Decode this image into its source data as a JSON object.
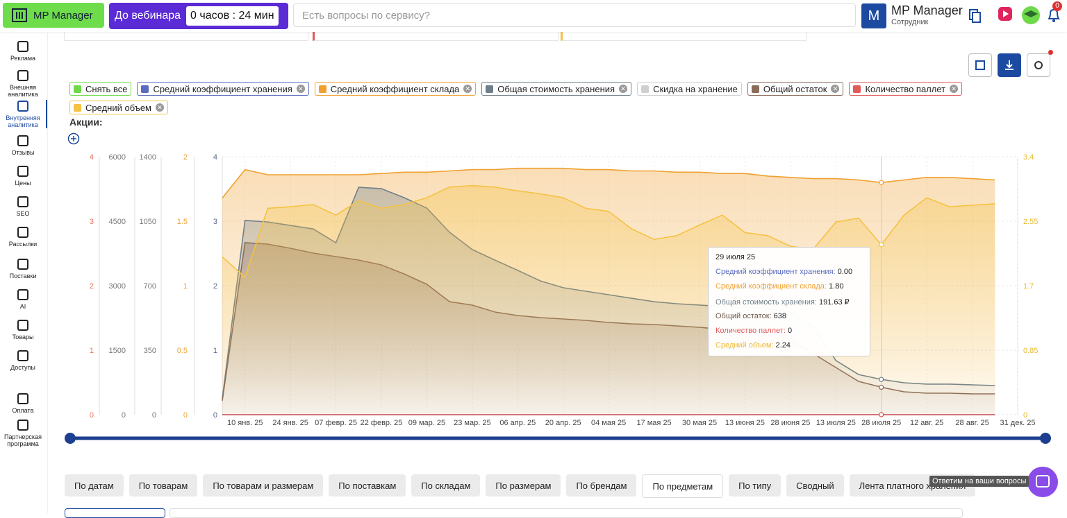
{
  "header": {
    "logo": "MP Manager",
    "webinar_label": "До вебинара",
    "webinar_timer": "0 часов : 24 мин",
    "search_placeholder": "Есть вопросы по сервису?",
    "avatar_letter": "M",
    "user_name": "MP Manager",
    "user_role": "Сотрудник",
    "notifications": "0"
  },
  "sidebar": [
    {
      "label": "Реклама",
      "active": false
    },
    {
      "label": "Внешняя аналитика",
      "active": false
    },
    {
      "label": "Внутренняя аналитика",
      "active": true
    },
    {
      "label": "Отзывы",
      "active": false
    },
    {
      "label": "Цены",
      "active": false
    },
    {
      "label": "SEO",
      "active": false
    },
    {
      "label": "Рассылки",
      "active": false
    },
    {
      "label": "Поставки",
      "active": false
    },
    {
      "label": "AI",
      "active": false
    },
    {
      "label": "Товары",
      "active": false
    },
    {
      "label": "Доступы",
      "active": false
    },
    {
      "label": "Оплата",
      "active": false
    },
    {
      "label": "Партнерская программа",
      "active": false
    }
  ],
  "legend": [
    {
      "label": "Снять все",
      "color": "#6fd94a",
      "removable": false
    },
    {
      "label": "Средний коэффициент хранения",
      "color": "#5b6bbf",
      "removable": true
    },
    {
      "label": "Средний коэффициент склада",
      "color": "#f0a030",
      "removable": true
    },
    {
      "label": "Общая стоимость хранения",
      "color": "#6e7f8a",
      "removable": true
    },
    {
      "label": "Скидка на хранение",
      "color": "#cfcfcf",
      "removable": false
    },
    {
      "label": "Общий остаток",
      "color": "#8b6b5a",
      "removable": true
    },
    {
      "label": "Количество паллет",
      "color": "#e05a5a",
      "removable": true
    },
    {
      "label": "Средний объем",
      "color": "#f5c242",
      "removable": true
    }
  ],
  "promotions_label": "Акции:",
  "chart_data": {
    "type": "line",
    "grid": true,
    "categories": [
      null,
      "10 янв. 25",
      null,
      "24 янв. 25",
      null,
      "07 февр. 25",
      null,
      "22 февр. 25",
      null,
      "09 мар. 25",
      null,
      "23 мар. 25",
      null,
      "06 апр. 25",
      null,
      "20 апр. 25",
      null,
      "04 мая 25",
      null,
      "17 мая 25",
      null,
      "30 мая 25",
      null,
      "13 июня 25",
      null,
      "28 июня 25",
      null,
      "13 июля 25",
      null,
      "28 июля 25",
      null,
      "12 авг. 25",
      null,
      "28 авг. 25",
      null,
      "31 дек. 25"
    ],
    "axes": [
      {
        "ylim": [
          0,
          4
        ],
        "yticks": [
          0,
          1,
          2,
          3,
          4
        ],
        "color": "#e8735a"
      },
      {
        "ylim": [
          0,
          6000
        ],
        "yticks": [
          0,
          1500,
          3000,
          4500,
          6000
        ],
        "color": "#777777"
      },
      {
        "ylim": [
          0,
          1400
        ],
        "yticks": [
          0,
          350,
          700,
          1050,
          1400
        ],
        "color": "#777777"
      },
      {
        "ylim": [
          0,
          2
        ],
        "yticks": [
          0,
          0.5,
          1,
          1.5,
          2
        ],
        "color": "#f0a030"
      },
      {
        "ylim": [
          0,
          4
        ],
        "yticks": [
          0,
          1,
          2,
          3,
          4
        ],
        "color": "#5a6a8a"
      },
      {
        "ylim": [
          0,
          3.4
        ],
        "yticks": [
          0,
          0.85,
          1.7,
          2.55,
          3.4
        ],
        "color": "#e8b830"
      }
    ],
    "series": [
      {
        "name": "Средний коэффициент хранения",
        "color": "#5b6bbf",
        "axis": 4,
        "values": [
          0,
          0,
          0,
          0,
          0,
          0,
          0,
          0,
          0,
          0,
          0,
          0,
          0,
          0,
          0,
          0,
          0,
          0,
          0,
          0,
          0,
          0,
          0,
          0,
          0,
          0,
          0,
          0,
          0,
          0,
          0,
          0,
          0,
          0,
          0,
          null
        ]
      },
      {
        "name": "Средний коэффициент склада",
        "color": "#f0a030",
        "axis": 3,
        "values": [
          1.68,
          1.9,
          1.86,
          1.86,
          1.86,
          1.86,
          1.86,
          1.87,
          1.88,
          1.88,
          1.89,
          1.9,
          1.9,
          1.91,
          1.91,
          1.91,
          1.9,
          1.9,
          1.89,
          1.89,
          1.88,
          1.88,
          1.87,
          1.87,
          1.85,
          1.84,
          1.83,
          1.83,
          1.82,
          1.8,
          1.82,
          1.84,
          1.84,
          1.83,
          1.82,
          null
        ]
      },
      {
        "name": "Общая стоимость хранения",
        "color": "#6e7f8a",
        "axis": 2,
        "values": [
          87,
          1054,
          1046,
          1027,
          1008,
          933,
          1234,
          1227,
          1178,
          1121,
          990,
          896,
          839,
          783,
          726,
          689,
          670,
          651,
          632,
          613,
          602,
          595,
          587,
          583,
          576,
          557,
          482,
          294,
          218,
          191.63,
          173,
          166,
          166,
          162,
          158,
          null
        ]
      },
      {
        "name": "Общий остаток",
        "color": "#8b6b5a",
        "axis": 1,
        "values": [
          323,
          4000,
          3968,
          3871,
          3758,
          3678,
          3597,
          3484,
          3274,
          3032,
          2629,
          2548,
          2387,
          2306,
          2258,
          2226,
          2194,
          2145,
          2113,
          2097,
          2065,
          2032,
          1984,
          1936,
          1903,
          1742,
          1419,
          1097,
          774,
          638,
          532,
          500,
          500,
          484,
          484,
          null
        ]
      },
      {
        "name": "Количество паллет",
        "color": "#e05a5a",
        "axis": 0,
        "values": [
          0,
          0,
          0,
          0,
          0,
          0,
          0,
          0,
          0,
          0,
          0,
          0,
          0,
          0,
          0,
          0,
          0,
          0,
          0,
          0,
          0,
          0,
          0,
          0,
          0,
          0,
          0,
          0,
          0,
          0,
          0,
          0,
          0,
          0,
          0,
          null
        ]
      },
      {
        "name": "Средний объем",
        "color": "#f5c242",
        "axis": 5,
        "values": [
          2.08,
          1.81,
          2.72,
          2.74,
          2.77,
          2.63,
          2.82,
          2.72,
          2.77,
          2.86,
          3.0,
          3.02,
          3.0,
          2.95,
          2.91,
          2.86,
          2.72,
          2.68,
          2.45,
          2.31,
          2.36,
          2.5,
          2.63,
          2.4,
          2.36,
          2.22,
          2.18,
          2.54,
          2.59,
          2.24,
          2.63,
          2.86,
          2.74,
          2.76,
          2.78,
          null
        ]
      }
    ],
    "tooltip": {
      "index": 29,
      "date": "29 июля 25",
      "rows": [
        {
          "label": "Средний коэффициент хранения:",
          "value": "0.00",
          "color": "#5b6bbf"
        },
        {
          "label": "Средний коэффициент склада:",
          "value": "1.80",
          "color": "#f0a030"
        },
        {
          "label": "Общая стоимость хранения:",
          "value": "191.63 ₽",
          "color": "#6e7f8a"
        },
        {
          "label": "Общий остаток:",
          "value": "638",
          "color": "#6e5a4a"
        },
        {
          "label": "Количество паллет:",
          "value": "0",
          "color": "#e05a5a"
        },
        {
          "label": "Средний объем:",
          "value": "2.24",
          "color": "#f0b830"
        }
      ]
    }
  },
  "tabs": [
    {
      "label": "По датам",
      "selected": false
    },
    {
      "label": "По товарам",
      "selected": false
    },
    {
      "label": "По товарам и размерам",
      "selected": false
    },
    {
      "label": "По поставкам",
      "selected": false
    },
    {
      "label": "По складам",
      "selected": false
    },
    {
      "label": "По размерам",
      "selected": false
    },
    {
      "label": "По брендам",
      "selected": false
    },
    {
      "label": "По предметам",
      "selected": true
    },
    {
      "label": "По типу",
      "selected": false
    },
    {
      "label": "Сводный",
      "selected": false
    },
    {
      "label": "Лента платного хранения",
      "selected": false
    }
  ],
  "chat_hint": "Ответим на ваши вопросы"
}
